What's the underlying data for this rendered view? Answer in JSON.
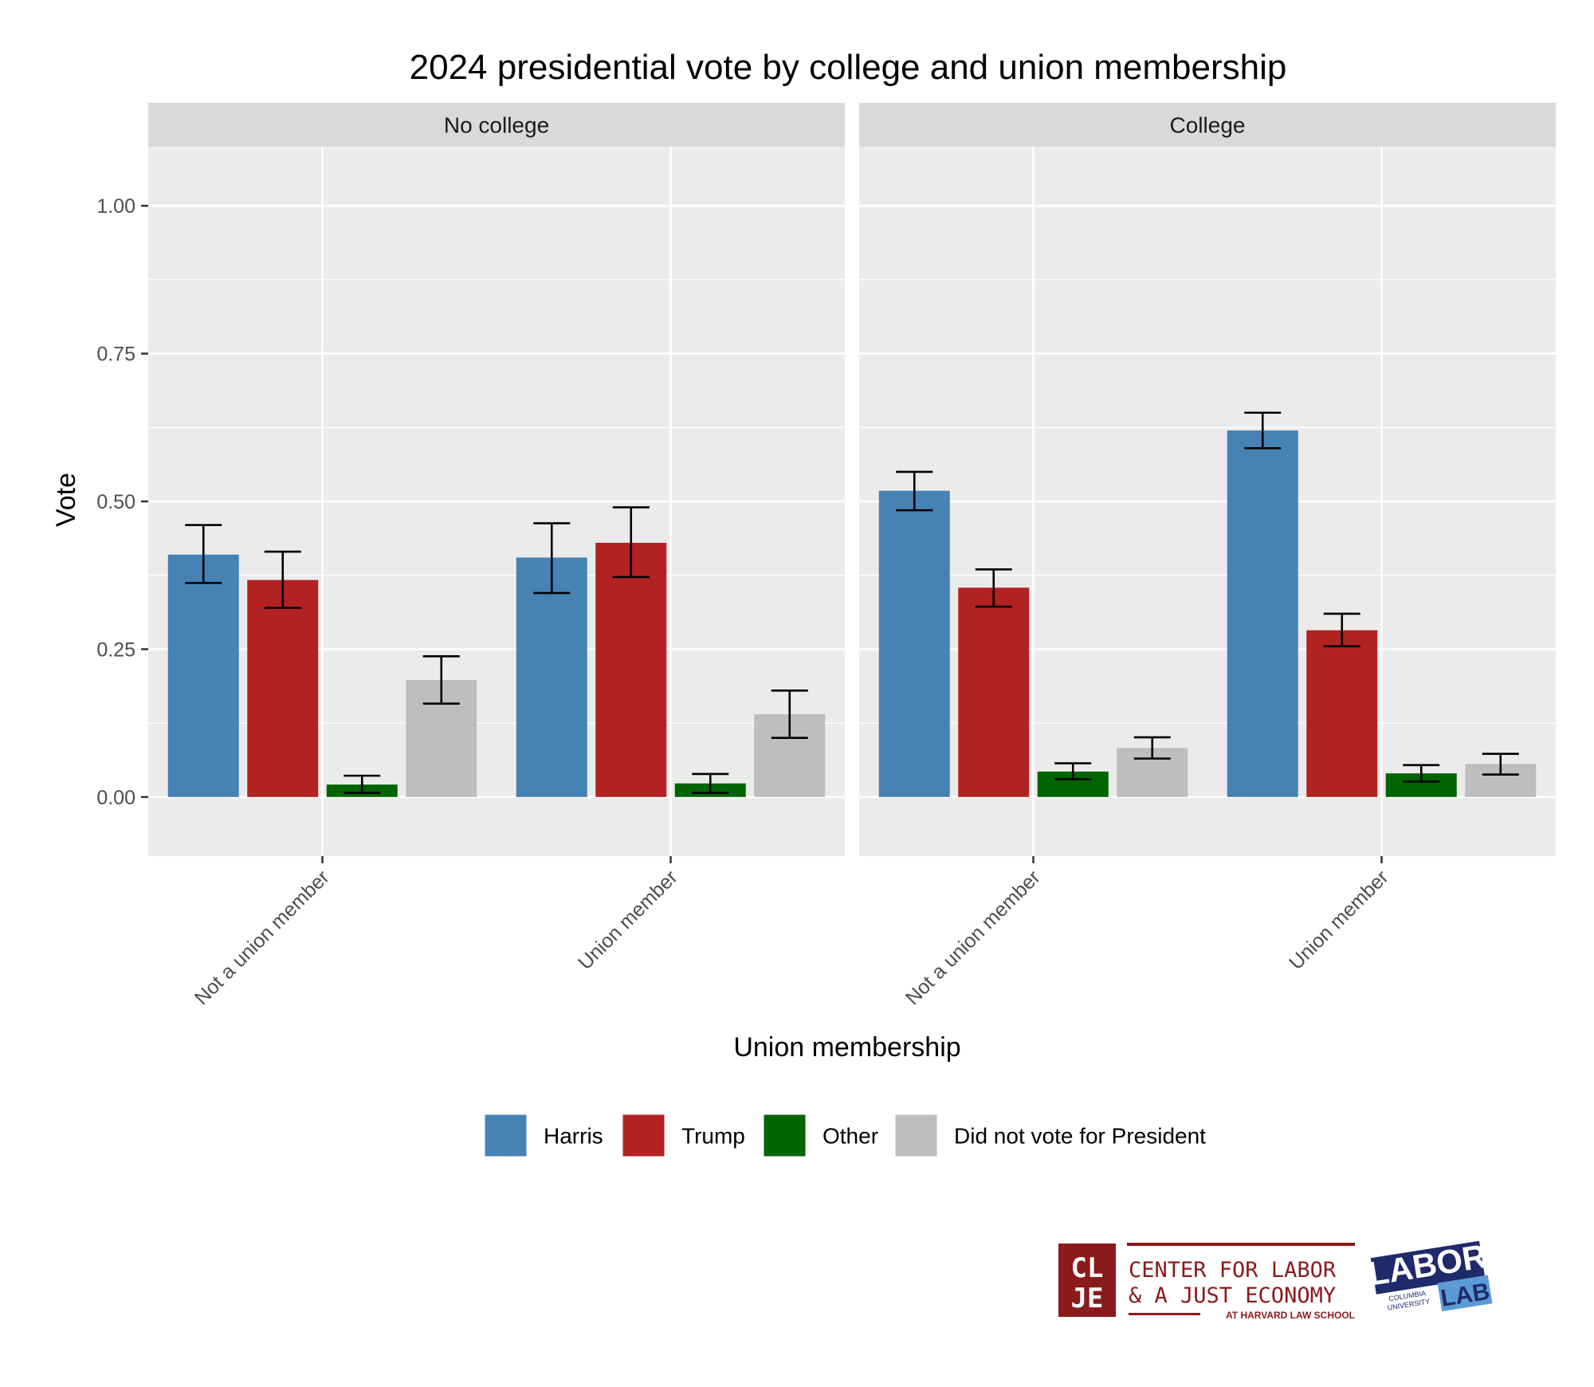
{
  "chart_data": {
    "type": "bar",
    "title": "2024 presidential vote by college and union membership",
    "xlabel": "Union membership",
    "ylabel": "Vote",
    "ylim": [
      -0.1,
      1.1
    ],
    "yticks": [
      "0.00",
      "0.25",
      "0.50",
      "0.75",
      "1.00"
    ],
    "ytick_values": [
      0,
      0.25,
      0.5,
      0.75,
      1.0
    ],
    "grid": true,
    "legend_position": "bottom",
    "categories": [
      "Not a union member",
      "Union member"
    ],
    "series_names": [
      "Harris",
      "Trump",
      "Other",
      "Did not vote for President"
    ],
    "colors": [
      "#4682B4",
      "#B22222",
      "#006400",
      "#BEBEBE"
    ],
    "panels": [
      {
        "name": "No college",
        "groups": [
          {
            "category": "Not a union member",
            "values": [
              0.41,
              0.367,
              0.021,
              0.198
            ],
            "lower": [
              0.362,
              0.32,
              0.007,
              0.158
            ],
            "upper": [
              0.46,
              0.415,
              0.036,
              0.238
            ]
          },
          {
            "category": "Union member",
            "values": [
              0.405,
              0.43,
              0.023,
              0.14
            ],
            "lower": [
              0.345,
              0.372,
              0.007,
              0.1
            ],
            "upper": [
              0.463,
              0.49,
              0.039,
              0.18
            ]
          }
        ]
      },
      {
        "name": "College",
        "groups": [
          {
            "category": "Not a union member",
            "values": [
              0.518,
              0.354,
              0.043,
              0.083
            ],
            "lower": [
              0.485,
              0.322,
              0.03,
              0.065
            ],
            "upper": [
              0.55,
              0.385,
              0.057,
              0.101
            ]
          },
          {
            "category": "Union member",
            "values": [
              0.62,
              0.282,
              0.04,
              0.056
            ],
            "lower": [
              0.59,
              0.255,
              0.026,
              0.038
            ],
            "upper": [
              0.65,
              0.31,
              0.054,
              0.073
            ]
          }
        ]
      }
    ]
  },
  "branding": {
    "clje_logo_letters": [
      "CL",
      "JE"
    ],
    "clje_line1": "CENTER FOR LABOR",
    "clje_line2": "& A JUST ECONOMY",
    "clje_line3": "AT HARVARD LAW SCHOOL",
    "labor_lab_word1": "LABOR",
    "labor_lab_word2": "LAB",
    "labor_lab_sub1": "COLUMBIA",
    "labor_lab_sub2": "UNIVERSITY"
  }
}
